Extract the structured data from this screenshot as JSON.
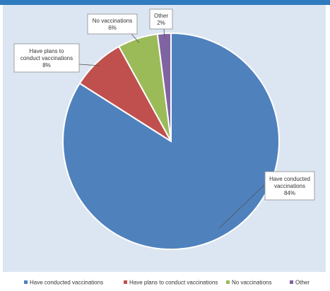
{
  "chart_data": {
    "type": "pie",
    "title": "",
    "start_angle_deg": 0,
    "direction": "clockwise",
    "slices": [
      {
        "name": "Have conducted vaccinations",
        "value": 84,
        "label_lines": [
          "Have conducted",
          "vaccinations",
          "84%"
        ],
        "color": "#4f81bd"
      },
      {
        "name": "Have plans to conduct vaccinations",
        "value": 8,
        "label_lines": [
          "Have plans to",
          "conduct vaccinations",
          "8%"
        ],
        "color": "#c0504d"
      },
      {
        "name": "No vaccinations",
        "value": 6,
        "label_lines": [
          "No vaccinations",
          "6%"
        ],
        "color": "#9bbb59"
      },
      {
        "name": "Other",
        "value": 2,
        "label_lines": [
          "Other",
          "2%"
        ],
        "color": "#8064a2"
      }
    ],
    "legend": {
      "position": "bottom",
      "labels": [
        "Have conducted vaccinations",
        "Have plans to conduct vaccinations",
        "No vaccinations",
        "Other"
      ]
    }
  }
}
